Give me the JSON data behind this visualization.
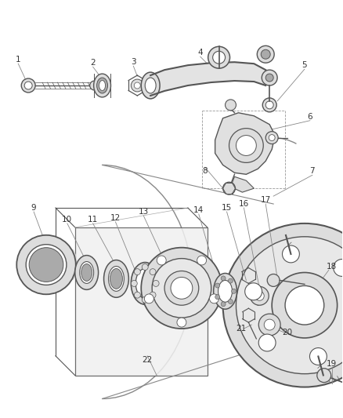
{
  "bg_color": "#ffffff",
  "line_color": "#555555",
  "label_color": "#333333",
  "fig_width": 4.38,
  "fig_height": 5.33
}
